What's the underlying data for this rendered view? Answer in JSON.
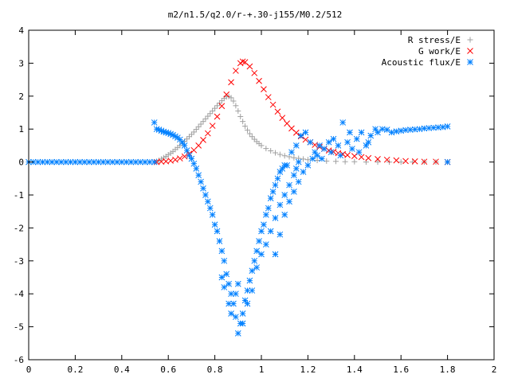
{
  "chart_data": {
    "type": "scatter",
    "title": "m2/n1.5/q2.0/r-+.30-j155/M0.2/512",
    "xlabel": "",
    "ylabel": "",
    "xlim": [
      0,
      2
    ],
    "ylim": [
      -6,
      4
    ],
    "xticks": [
      "0",
      "0.2",
      "0.4",
      "0.6",
      "0.8",
      "1",
      "1.2",
      "1.4",
      "1.6",
      "1.8",
      "2"
    ],
    "yticks": [
      "-6",
      "-5",
      "-4",
      "-3",
      "-2",
      "-1",
      "0",
      "1",
      "2",
      "3",
      "4"
    ],
    "grid": false,
    "legend_position": "top-right",
    "series": [
      {
        "name": "R stress/E",
        "marker": "plus",
        "color": "#a0a0a0",
        "points": [
          [
            0.55,
            0.02
          ],
          [
            0.56,
            0.05
          ],
          [
            0.57,
            0.09
          ],
          [
            0.58,
            0.13
          ],
          [
            0.59,
            0.17
          ],
          [
            0.6,
            0.22
          ],
          [
            0.61,
            0.27
          ],
          [
            0.62,
            0.32
          ],
          [
            0.63,
            0.38
          ],
          [
            0.64,
            0.44
          ],
          [
            0.65,
            0.5
          ],
          [
            0.66,
            0.56
          ],
          [
            0.67,
            0.63
          ],
          [
            0.68,
            0.7
          ],
          [
            0.69,
            0.77
          ],
          [
            0.7,
            0.84
          ],
          [
            0.71,
            0.91
          ],
          [
            0.72,
            0.99
          ],
          [
            0.73,
            1.07
          ],
          [
            0.74,
            1.15
          ],
          [
            0.75,
            1.23
          ],
          [
            0.76,
            1.31
          ],
          [
            0.77,
            1.39
          ],
          [
            0.78,
            1.47
          ],
          [
            0.79,
            1.55
          ],
          [
            0.8,
            1.63
          ],
          [
            0.81,
            1.71
          ],
          [
            0.82,
            1.79
          ],
          [
            0.83,
            1.86
          ],
          [
            0.84,
            1.93
          ],
          [
            0.85,
            1.98
          ],
          [
            0.86,
            1.99
          ],
          [
            0.87,
            1.95
          ],
          [
            0.88,
            1.85
          ],
          [
            0.89,
            1.71
          ],
          [
            0.9,
            1.55
          ],
          [
            0.91,
            1.38
          ],
          [
            0.92,
            1.23
          ],
          [
            0.93,
            1.09
          ],
          [
            0.94,
            0.97
          ],
          [
            0.95,
            0.86
          ],
          [
            0.96,
            0.77
          ],
          [
            0.97,
            0.69
          ],
          [
            0.98,
            0.62
          ],
          [
            0.99,
            0.56
          ],
          [
            1.0,
            0.5
          ],
          [
            1.02,
            0.41
          ],
          [
            1.04,
            0.34
          ],
          [
            1.06,
            0.28
          ],
          [
            1.08,
            0.23
          ],
          [
            1.1,
            0.19
          ],
          [
            1.12,
            0.16
          ],
          [
            1.14,
            0.13
          ],
          [
            1.16,
            0.11
          ],
          [
            1.18,
            0.09
          ],
          [
            1.2,
            0.07
          ],
          [
            1.24,
            0.05
          ],
          [
            1.28,
            0.03
          ],
          [
            1.32,
            0.02
          ],
          [
            1.36,
            0.01
          ],
          [
            1.4,
            0.01
          ],
          [
            1.45,
            0.0
          ],
          [
            1.5,
            0.0
          ],
          [
            1.55,
            0.0
          ],
          [
            1.6,
            0.0
          ],
          [
            1.65,
            0.0
          ],
          [
            1.7,
            0.0
          ],
          [
            1.75,
            0.0
          ],
          [
            1.8,
            0.0
          ]
        ]
      },
      {
        "name": "G work/E",
        "marker": "cross",
        "color": "#ff0000",
        "points": [
          [
            0.55,
            0.0
          ],
          [
            0.57,
            0.01
          ],
          [
            0.59,
            0.02
          ],
          [
            0.61,
            0.04
          ],
          [
            0.63,
            0.07
          ],
          [
            0.65,
            0.11
          ],
          [
            0.67,
            0.17
          ],
          [
            0.69,
            0.25
          ],
          [
            0.71,
            0.36
          ],
          [
            0.73,
            0.5
          ],
          [
            0.75,
            0.67
          ],
          [
            0.77,
            0.87
          ],
          [
            0.79,
            1.1
          ],
          [
            0.81,
            1.38
          ],
          [
            0.83,
            1.7
          ],
          [
            0.85,
            2.05
          ],
          [
            0.87,
            2.42
          ],
          [
            0.89,
            2.77
          ],
          [
            0.91,
            3.0
          ],
          [
            0.92,
            3.05
          ],
          [
            0.93,
            3.03
          ],
          [
            0.95,
            2.9
          ],
          [
            0.97,
            2.7
          ],
          [
            0.99,
            2.46
          ],
          [
            1.01,
            2.21
          ],
          [
            1.03,
            1.97
          ],
          [
            1.05,
            1.74
          ],
          [
            1.07,
            1.53
          ],
          [
            1.09,
            1.34
          ],
          [
            1.11,
            1.17
          ],
          [
            1.13,
            1.02
          ],
          [
            1.15,
            0.89
          ],
          [
            1.17,
            0.78
          ],
          [
            1.19,
            0.68
          ],
          [
            1.21,
            0.6
          ],
          [
            1.23,
            0.52
          ],
          [
            1.25,
            0.46
          ],
          [
            1.27,
            0.4
          ],
          [
            1.29,
            0.35
          ],
          [
            1.31,
            0.31
          ],
          [
            1.33,
            0.27
          ],
          [
            1.35,
            0.24
          ],
          [
            1.37,
            0.21
          ],
          [
            1.4,
            0.18
          ],
          [
            1.43,
            0.15
          ],
          [
            1.46,
            0.12
          ],
          [
            1.5,
            0.09
          ],
          [
            1.54,
            0.07
          ],
          [
            1.58,
            0.05
          ],
          [
            1.62,
            0.03
          ],
          [
            1.66,
            0.02
          ],
          [
            1.7,
            0.01
          ],
          [
            1.75,
            0.01
          ],
          [
            1.8,
            0.0
          ]
        ]
      },
      {
        "name": "Acoustic flux/E",
        "marker": "star",
        "color": "#0080ff",
        "points": [
          [
            0.0,
            0.0
          ],
          [
            0.02,
            0.0
          ],
          [
            0.04,
            0.0
          ],
          [
            0.06,
            0.0
          ],
          [
            0.08,
            0.0
          ],
          [
            0.1,
            0.0
          ],
          [
            0.12,
            0.0
          ],
          [
            0.14,
            0.0
          ],
          [
            0.16,
            0.0
          ],
          [
            0.18,
            0.0
          ],
          [
            0.2,
            0.0
          ],
          [
            0.22,
            0.0
          ],
          [
            0.24,
            0.0
          ],
          [
            0.26,
            0.0
          ],
          [
            0.28,
            0.0
          ],
          [
            0.3,
            0.0
          ],
          [
            0.32,
            0.0
          ],
          [
            0.34,
            0.0
          ],
          [
            0.36,
            0.0
          ],
          [
            0.38,
            0.0
          ],
          [
            0.4,
            0.0
          ],
          [
            0.42,
            0.0
          ],
          [
            0.44,
            0.0
          ],
          [
            0.46,
            0.0
          ],
          [
            0.48,
            0.0
          ],
          [
            0.5,
            0.0
          ],
          [
            0.52,
            0.0
          ],
          [
            0.54,
            0.0
          ],
          [
            0.54,
            1.2
          ],
          [
            0.55,
            1.0
          ],
          [
            0.56,
            0.98
          ],
          [
            0.57,
            0.95
          ],
          [
            0.58,
            0.92
          ],
          [
            0.59,
            0.9
          ],
          [
            0.6,
            0.88
          ],
          [
            0.61,
            0.85
          ],
          [
            0.62,
            0.82
          ],
          [
            0.63,
            0.78
          ],
          [
            0.64,
            0.74
          ],
          [
            0.65,
            0.68
          ],
          [
            0.66,
            0.6
          ],
          [
            0.67,
            0.5
          ],
          [
            0.68,
            0.35
          ],
          [
            0.69,
            0.2
          ],
          [
            0.7,
            0.1
          ],
          [
            0.71,
            -0.05
          ],
          [
            0.72,
            -0.2
          ],
          [
            0.73,
            -0.4
          ],
          [
            0.74,
            -0.6
          ],
          [
            0.75,
            -0.8
          ],
          [
            0.76,
            -1.0
          ],
          [
            0.77,
            -1.2
          ],
          [
            0.78,
            -1.4
          ],
          [
            0.79,
            -1.6
          ],
          [
            0.8,
            -1.9
          ],
          [
            0.81,
            -2.1
          ],
          [
            0.82,
            -2.4
          ],
          [
            0.83,
            -2.7
          ],
          [
            0.84,
            -3.0
          ],
          [
            0.85,
            -3.4
          ],
          [
            0.86,
            -3.7
          ],
          [
            0.87,
            -4.0
          ],
          [
            0.88,
            -4.3
          ],
          [
            0.89,
            -4.7
          ],
          [
            0.9,
            -5.2
          ],
          [
            0.91,
            -4.9
          ],
          [
            0.92,
            -4.6
          ],
          [
            0.93,
            -4.2
          ],
          [
            0.94,
            -3.9
          ],
          [
            0.95,
            -3.6
          ],
          [
            0.96,
            -3.3
          ],
          [
            0.97,
            -3.0
          ],
          [
            0.98,
            -2.7
          ],
          [
            0.99,
            -2.4
          ],
          [
            1.0,
            -2.1
          ],
          [
            1.01,
            -1.9
          ],
          [
            1.02,
            -1.6
          ],
          [
            1.03,
            -1.4
          ],
          [
            1.04,
            -1.1
          ],
          [
            1.05,
            -0.9
          ],
          [
            1.06,
            -0.7
          ],
          [
            1.07,
            -0.5
          ],
          [
            1.08,
            -0.3
          ],
          [
            1.09,
            -0.2
          ],
          [
            1.1,
            -0.1
          ],
          [
            0.83,
            -3.5
          ],
          [
            0.84,
            -3.8
          ],
          [
            0.86,
            -4.3
          ],
          [
            0.87,
            -4.6
          ],
          [
            0.89,
            -4.0
          ],
          [
            0.9,
            -3.7
          ],
          [
            0.92,
            -4.9
          ],
          [
            0.94,
            -4.3
          ],
          [
            0.96,
            -3.9
          ],
          [
            0.98,
            -3.2
          ],
          [
            1.0,
            -2.8
          ],
          [
            1.02,
            -2.5
          ],
          [
            1.04,
            -2.1
          ],
          [
            1.06,
            -1.7
          ],
          [
            1.08,
            -1.3
          ],
          [
            1.1,
            -1.0
          ],
          [
            1.12,
            -0.7
          ],
          [
            1.14,
            -0.4
          ],
          [
            1.15,
            -0.2
          ],
          [
            1.16,
            0.0
          ],
          [
            1.06,
            -2.8
          ],
          [
            1.08,
            -2.2
          ],
          [
            1.1,
            -1.6
          ],
          [
            1.12,
            -1.2
          ],
          [
            1.14,
            -0.9
          ],
          [
            1.16,
            -0.6
          ],
          [
            1.18,
            -0.3
          ],
          [
            1.2,
            -0.1
          ],
          [
            1.22,
            0.1
          ],
          [
            1.24,
            0.2
          ],
          [
            1.11,
            -0.1
          ],
          [
            1.13,
            0.3
          ],
          [
            1.15,
            0.5
          ],
          [
            1.17,
            0.8
          ],
          [
            1.19,
            0.9
          ],
          [
            1.21,
            0.6
          ],
          [
            1.23,
            0.3
          ],
          [
            1.25,
            0.5
          ],
          [
            1.27,
            0.4
          ],
          [
            1.29,
            0.6
          ],
          [
            1.31,
            0.7
          ],
          [
            1.33,
            0.5
          ],
          [
            1.35,
            1.2
          ],
          [
            1.37,
            0.6
          ],
          [
            1.39,
            0.4
          ],
          [
            1.41,
            0.7
          ],
          [
            1.43,
            0.9
          ],
          [
            1.45,
            0.5
          ],
          [
            1.47,
            0.8
          ],
          [
            1.49,
            1.0
          ],
          [
            1.26,
            0.1
          ],
          [
            1.3,
            0.3
          ],
          [
            1.34,
            0.2
          ],
          [
            1.38,
            0.9
          ],
          [
            1.42,
            0.3
          ],
          [
            1.46,
            0.6
          ],
          [
            1.5,
            0.9
          ],
          [
            1.52,
            1.0
          ],
          [
            1.54,
            0.98
          ],
          [
            1.56,
            0.9
          ],
          [
            1.58,
            0.93
          ],
          [
            1.6,
            0.95
          ],
          [
            1.62,
            0.97
          ],
          [
            1.64,
            0.98
          ],
          [
            1.66,
            0.99
          ],
          [
            1.68,
            1.0
          ],
          [
            1.7,
            1.02
          ],
          [
            1.72,
            1.03
          ],
          [
            1.74,
            1.04
          ],
          [
            1.76,
            1.05
          ],
          [
            1.78,
            1.06
          ],
          [
            1.8,
            1.08
          ],
          [
            1.8,
            0.0
          ]
        ]
      }
    ]
  }
}
